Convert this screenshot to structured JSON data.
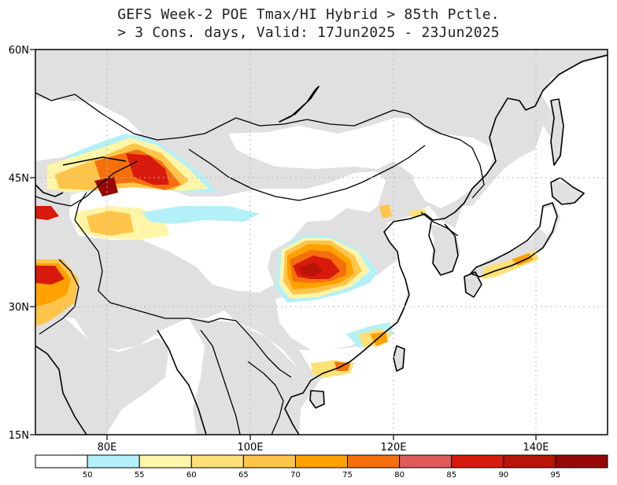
{
  "title": {
    "line1": "GEFS Week-2 POE Tmax/HI Hybrid > 85th Pctle.",
    "line2": "> 3 Cons. days, Valid: 17Jun2025 - 23Jun2025"
  },
  "axes": {
    "lat_labels": [
      "60N",
      "45N",
      "30N",
      "15N"
    ],
    "lon_labels": [
      "80E",
      "100E",
      "120E",
      "140E"
    ]
  },
  "legend": {
    "tick_labels": [
      "50",
      "55",
      "60",
      "65",
      "70",
      "75",
      "80",
      "85",
      "90",
      "95"
    ],
    "colors": [
      "#ffffff",
      "#b4f0f8",
      "#fff5a8",
      "#ffe076",
      "#ffc54a",
      "#ffa100",
      "#f5700c",
      "#e05a5a",
      "#d81a0c",
      "#b81408",
      "#960808"
    ]
  },
  "colors": {
    "land_no_data": "#e0e0e0",
    "ocean": "#ffffff",
    "grid": "#b8b8b8"
  }
}
